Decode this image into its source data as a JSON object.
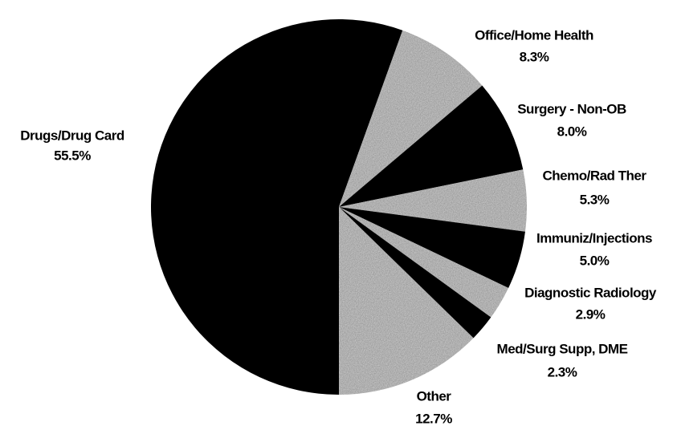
{
  "chart_data": {
    "type": "pie",
    "categories": [
      "Drugs/Drug Card",
      "Office/Home Health",
      "Surgery - Non-OB",
      "Chemo/Rad Ther",
      "Immuniz/Injections",
      "Diagnostic Radiology",
      "Med/Surg Supp, DME",
      "Other"
    ],
    "values": [
      55.5,
      8.3,
      8.0,
      5.3,
      5.0,
      2.9,
      2.3,
      12.7
    ],
    "value_labels": [
      "55.5%",
      "8.3%",
      "8.0%",
      "5.3%",
      "5.0%",
      "2.9%",
      "2.3%",
      "12.7%"
    ],
    "colors": [
      "#000000",
      "#b0b0b0",
      "#000000",
      "#b0b0b0",
      "#000000",
      "#b0b0b0",
      "#000000",
      "#b0b0b0"
    ]
  }
}
